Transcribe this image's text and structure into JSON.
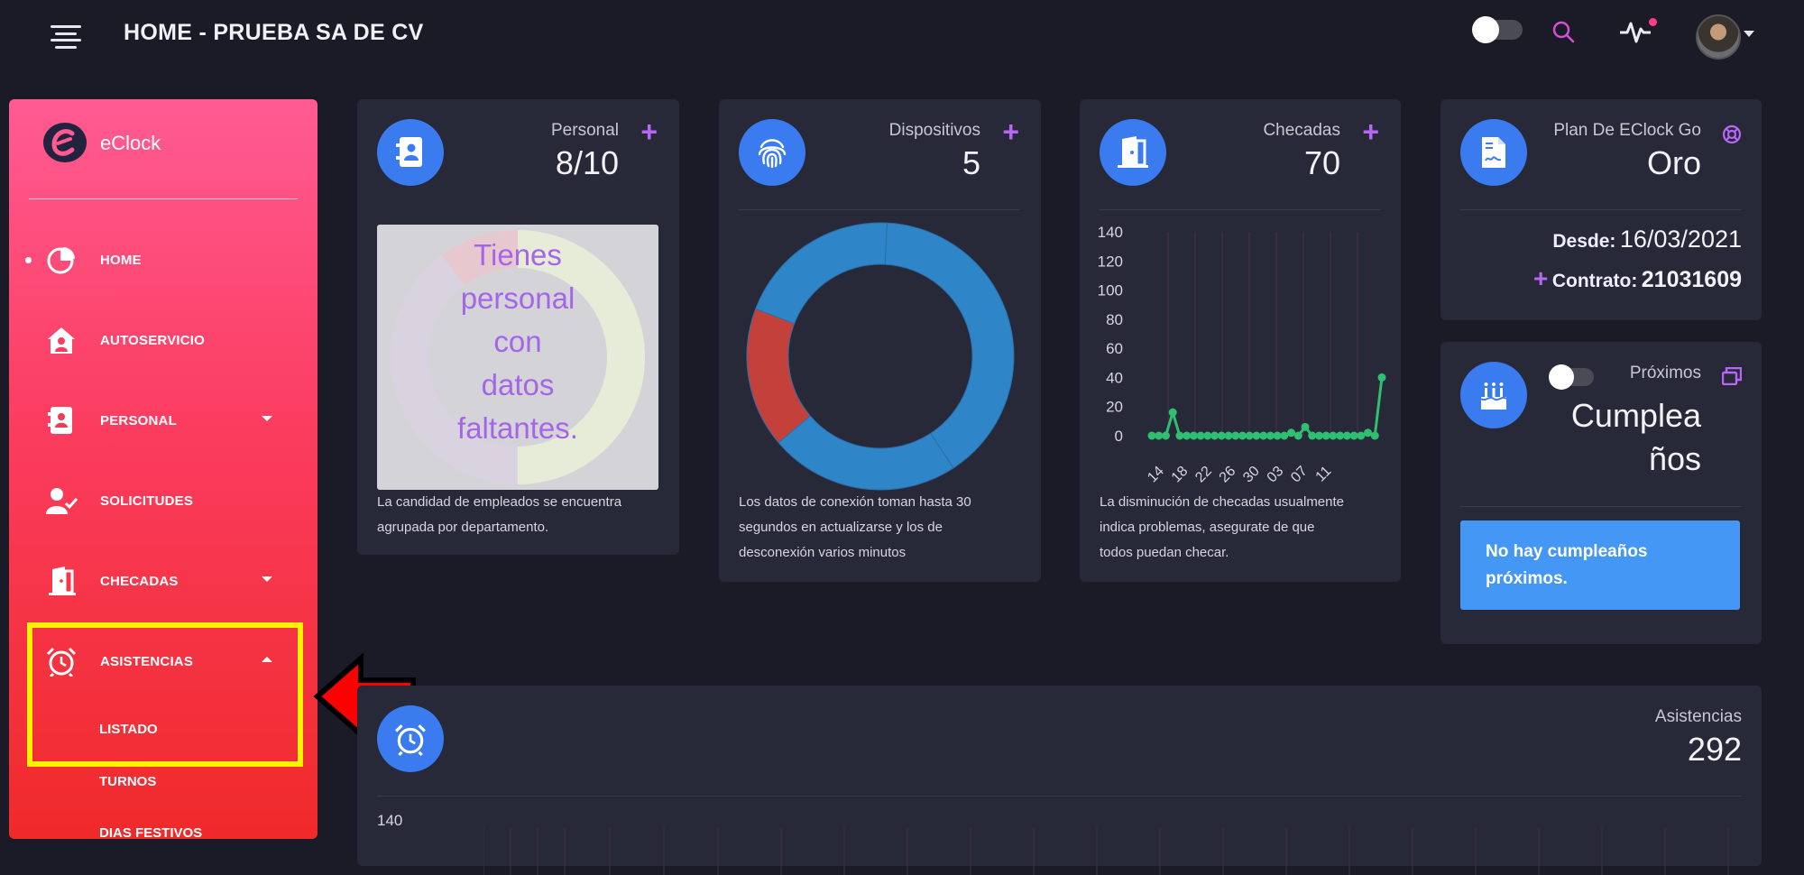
{
  "header": {
    "title": "HOME - PRUEBA SA DE CV"
  },
  "sidebar": {
    "brand": "eClock",
    "items": [
      {
        "label": "HOME",
        "icon": "pie-chart-icon",
        "active": true
      },
      {
        "label": "AUTOSERVICIO",
        "icon": "house-user-icon"
      },
      {
        "label": "PERSONAL",
        "icon": "address-book-icon",
        "caret": "down"
      },
      {
        "label": "SOLICITUDES",
        "icon": "user-check-icon"
      },
      {
        "label": "CHECADAS",
        "icon": "door-open-icon",
        "caret": "down"
      },
      {
        "label": "ASISTENCIAS",
        "icon": "alarm-clock-icon",
        "caret": "up"
      }
    ],
    "subitems": [
      "LISTADO",
      "TURNOS",
      "DIAS FESTIVOS"
    ]
  },
  "cards": {
    "personal": {
      "label": "Personal",
      "value": "8/10",
      "message_lines": [
        "Tienes",
        "personal",
        "con",
        "datos",
        "faltantes."
      ],
      "note_lines": [
        "La candidad de empleados se encuentra",
        "agrupada por departamento."
      ]
    },
    "devices": {
      "label": "Dispositivos",
      "value": "5",
      "note_lines": [
        "Los datos de conexión toman hasta 30",
        "segundos en actualizarse y los de",
        "desconexión varios minutos"
      ]
    },
    "checks": {
      "label": "Checadas",
      "value": "70",
      "note_lines": [
        "La disminución de checadas usualmente",
        "indica problemas, asegurate de que",
        "todos puedan checar."
      ]
    },
    "plan": {
      "label": "Plan De EClock Go",
      "value": "Oro",
      "since_label": "Desde:",
      "since_value": "16/03/2021",
      "contract_label": "Contrato:",
      "contract_value": "21031609"
    },
    "birthdays": {
      "label": "Próximos",
      "value_lines": [
        "Cumplea",
        "ños"
      ],
      "alert_lines": [
        "No hay cumpleaños",
        "próximos."
      ]
    },
    "attendance": {
      "label": "Asistencias",
      "value": "292",
      "axis_top": "140"
    }
  },
  "chart_data": [
    {
      "type": "pie",
      "chart": "devices-donut",
      "slices": [
        {
          "value": 40,
          "color": "#2e86c8"
        },
        {
          "value": 23,
          "color": "#2e86c8"
        },
        {
          "value": 17,
          "color": "#c4413b"
        },
        {
          "value": 20,
          "color": "#2e86c8"
        }
      ]
    },
    {
      "type": "line",
      "chart": "checks-line",
      "ylim": [
        0,
        140
      ],
      "yticks": [
        "140",
        "120",
        "100",
        "80",
        "60",
        "40",
        "20",
        "0"
      ],
      "xticks": [
        "14",
        "18",
        "22",
        "26",
        "30",
        "03",
        "07",
        "11"
      ],
      "values": [
        0,
        0,
        0,
        16,
        0,
        0,
        0,
        0,
        0,
        0,
        0,
        0,
        0,
        0,
        0,
        0,
        0,
        0,
        0,
        0,
        2,
        0,
        6,
        0,
        0,
        0,
        0,
        0,
        0,
        0,
        0,
        2,
        0,
        40
      ],
      "color": "#2fbf71"
    }
  ],
  "colors": {
    "background": "#1a1b26",
    "card": "#272938",
    "accent_blue": "#3a7cf0",
    "accent_purple": "#b866f5",
    "highlight": "#fff200",
    "arrow": "#ff0000"
  }
}
